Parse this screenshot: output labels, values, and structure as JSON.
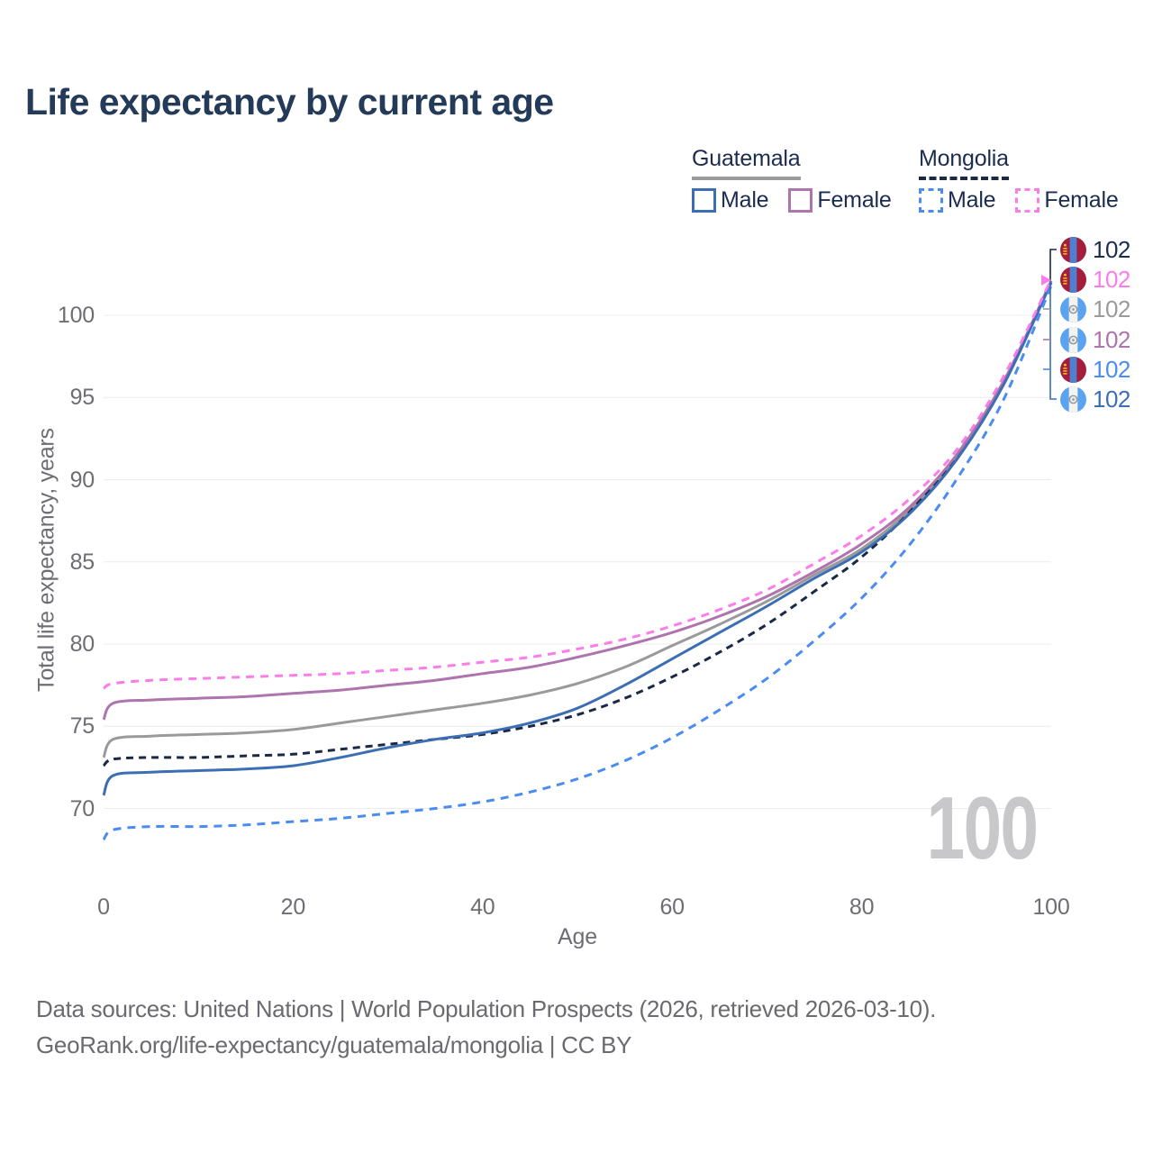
{
  "title": "Life expectancy by current age",
  "watermark": "100",
  "axes": {
    "x": {
      "label": "Age",
      "ticks": [
        0,
        20,
        40,
        60,
        80,
        100
      ]
    },
    "y": {
      "label": "Total life expectancy, years",
      "ticks": [
        70,
        75,
        80,
        85,
        90,
        95,
        100
      ]
    }
  },
  "legend": {
    "groups": [
      {
        "country": "Guatemala",
        "line_style": "solid",
        "underline_color": "#9a9a9b",
        "items": [
          {
            "label": "Male",
            "color": "#3c6eb4"
          },
          {
            "label": "Female",
            "color": "#ad74ad"
          }
        ]
      },
      {
        "country": "Mongolia",
        "line_style": "dashed",
        "underline_color": "#1a2944",
        "items": [
          {
            "label": "Male",
            "color": "#4a8cf0"
          },
          {
            "label": "Female",
            "color": "#fa7de9"
          }
        ]
      }
    ]
  },
  "chart_data": {
    "type": "line",
    "title": "Life expectancy by current age",
    "xlabel": "Age",
    "ylabel": "Total life expectancy, years",
    "xlim": [
      0,
      100
    ],
    "ylim": [
      67.5,
      103
    ],
    "grid": true,
    "x": [
      0,
      1,
      5,
      10,
      15,
      20,
      25,
      30,
      35,
      40,
      45,
      50,
      55,
      60,
      65,
      70,
      75,
      80,
      85,
      90,
      95,
      100
    ],
    "series": [
      {
        "id": "guatemala-both",
        "country": "Guatemala",
        "sex": "Both sexes",
        "color": "#9a9a9b",
        "dash": null,
        "values": [
          73.1,
          74.2,
          74.4,
          74.5,
          74.6,
          74.8,
          75.2,
          75.6,
          76.0,
          76.4,
          76.9,
          77.6,
          78.6,
          79.9,
          81.2,
          82.6,
          84.2,
          85.8,
          88.1,
          91.3,
          95.9,
          102.0
        ]
      },
      {
        "id": "mongolia-both",
        "country": "Mongolia",
        "sex": "Both sexes",
        "color": "#1a2944",
        "dash": "8 6",
        "values": [
          72.6,
          73.0,
          73.1,
          73.1,
          73.2,
          73.3,
          73.6,
          73.9,
          74.2,
          74.5,
          75.0,
          75.7,
          76.7,
          78.0,
          79.5,
          81.2,
          83.2,
          85.3,
          88.0,
          91.4,
          96.0,
          102.0
        ]
      },
      {
        "id": "guatemala-female",
        "country": "Guatemala",
        "sex": "Female",
        "color": "#ad74ad",
        "dash": null,
        "values": [
          75.4,
          76.4,
          76.6,
          76.7,
          76.8,
          77.0,
          77.2,
          77.5,
          77.8,
          78.2,
          78.6,
          79.2,
          79.9,
          80.7,
          81.7,
          82.9,
          84.4,
          86.1,
          88.3,
          91.5,
          96.0,
          102.1
        ]
      },
      {
        "id": "guatemala-male",
        "country": "Guatemala",
        "sex": "Male",
        "color": "#3c6eb4",
        "dash": null,
        "values": [
          70.8,
          72.0,
          72.2,
          72.3,
          72.4,
          72.6,
          73.1,
          73.7,
          74.2,
          74.6,
          75.2,
          76.1,
          77.5,
          79.1,
          80.7,
          82.3,
          84.0,
          85.6,
          87.9,
          91.2,
          95.8,
          102.0
        ]
      },
      {
        "id": "mongolia-male",
        "country": "Mongolia",
        "sex": "Male",
        "color": "#4a8cf0",
        "dash": "9 7",
        "values": [
          68.1,
          68.7,
          68.9,
          68.9,
          69.0,
          69.2,
          69.4,
          69.7,
          70.0,
          70.4,
          71.0,
          71.8,
          72.9,
          74.3,
          76.0,
          77.9,
          80.2,
          82.8,
          86.0,
          90.0,
          94.9,
          101.8
        ]
      },
      {
        "id": "mongolia-female",
        "country": "Mongolia",
        "sex": "Female",
        "color": "#fa7de9",
        "dash": "9 7",
        "values": [
          77.3,
          77.6,
          77.8,
          77.9,
          78.0,
          78.1,
          78.2,
          78.4,
          78.6,
          78.9,
          79.2,
          79.7,
          80.3,
          81.1,
          82.1,
          83.3,
          84.9,
          86.6,
          88.8,
          91.8,
          96.3,
          102.2
        ]
      }
    ]
  },
  "end_labels": [
    {
      "series": "mongolia-both",
      "flag": "mongolia",
      "value": "102",
      "color": "#1b2c4f"
    },
    {
      "series": "mongolia-female",
      "flag": "mongolia",
      "value": "102",
      "color": "#fa7de9"
    },
    {
      "series": "guatemala-both",
      "flag": "guatemala",
      "value": "102",
      "color": "#9a9a9b"
    },
    {
      "series": "guatemala-female",
      "flag": "guatemala",
      "value": "102",
      "color": "#ad74ad"
    },
    {
      "series": "mongolia-male",
      "flag": "mongolia",
      "value": "102",
      "color": "#4a8cf0"
    },
    {
      "series": "guatemala-male",
      "flag": "guatemala",
      "value": "102",
      "color": "#3c6eb4"
    }
  ],
  "footer": {
    "line1": "Data sources: United Nations | World Population Prospects (2026, retrieved 2026-03-10).",
    "line2": "GeoRank.org/life-expectancy/guatemala/mongolia | CC BY"
  }
}
